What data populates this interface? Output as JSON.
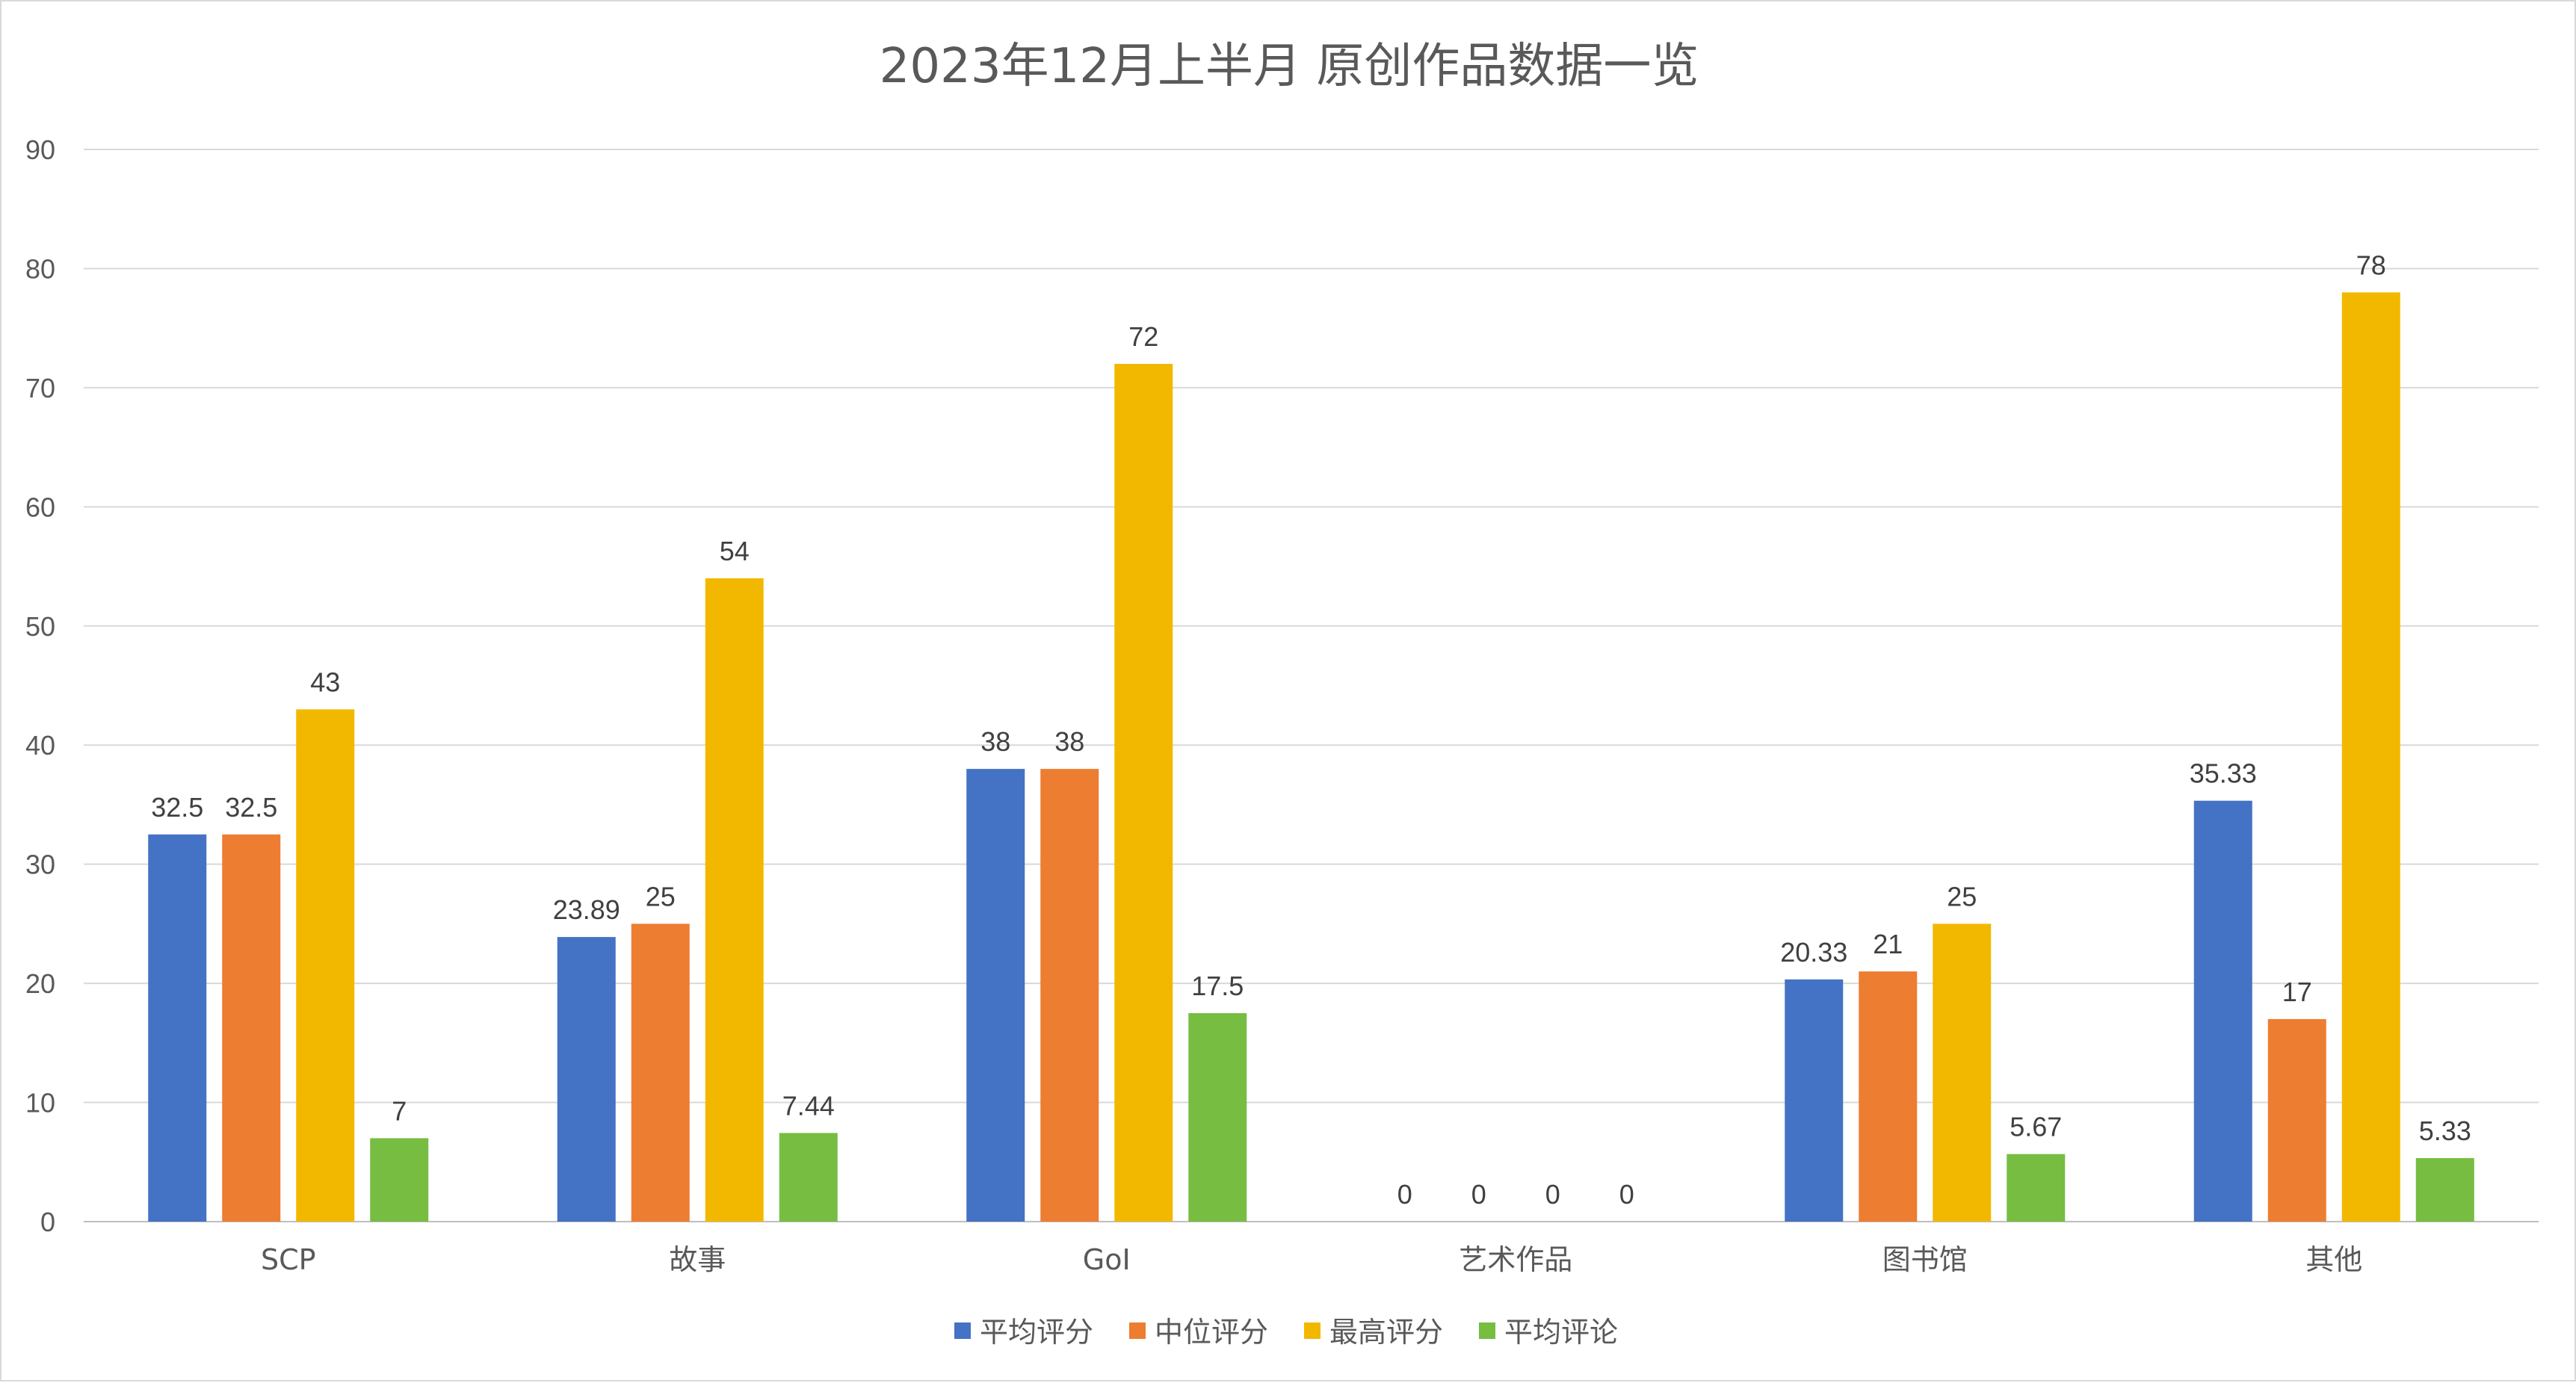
{
  "chart_data": {
    "type": "bar",
    "title": "2023年12月上半月 原创作品数据一览",
    "xlabel": "",
    "ylabel": "",
    "ylim": [
      0,
      90
    ],
    "yticks": [
      0,
      10,
      20,
      30,
      40,
      50,
      60,
      70,
      80,
      90
    ],
    "grid": true,
    "legend_position": "bottom",
    "categories": [
      "SCP",
      "故事",
      "GoI",
      "艺术作品",
      "图书馆",
      "其他"
    ],
    "series": [
      {
        "name": "平均评分",
        "color": "#4472C4",
        "values": [
          32.5,
          23.89,
          38,
          0,
          20.33,
          35.33
        ]
      },
      {
        "name": "中位评分",
        "color": "#ED7D31",
        "values": [
          32.5,
          25,
          38,
          0,
          21,
          17
        ]
      },
      {
        "name": "最高评分",
        "color": "#F2B800",
        "values": [
          43,
          54,
          72,
          0,
          25,
          78
        ]
      },
      {
        "name": "平均评论",
        "color": "#76BD42",
        "values": [
          7,
          7.44,
          17.5,
          0,
          5.67,
          5.33
        ]
      }
    ]
  }
}
